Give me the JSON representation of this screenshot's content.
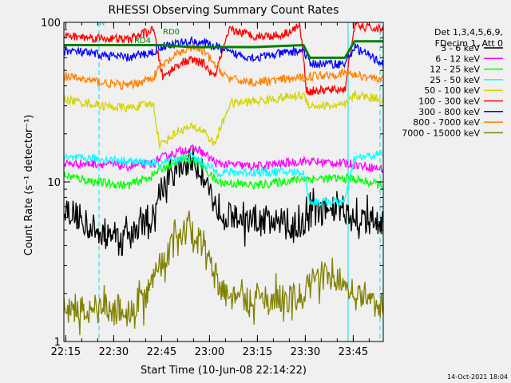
{
  "chart_data": {
    "type": "line",
    "title": "RHESSI Observing Summary Count Rates",
    "xlabel": "Start Time (10-Jun-08 22:14:22)",
    "ylabel": "Count Rate (s⁻¹ detector⁻¹)",
    "yscale": "log",
    "ylim": [
      1,
      100
    ],
    "xlim_minutes": [
      0,
      100
    ],
    "x_ticks": [
      {
        "label": "22:15",
        "t": 0.6
      },
      {
        "label": "22:30",
        "t": 15.6
      },
      {
        "label": "22:45",
        "t": 30.6
      },
      {
        "label": "23:00",
        "t": 45.6
      },
      {
        "label": "23:15",
        "t": 60.6
      },
      {
        "label": "23:30",
        "t": 75.6
      },
      {
        "label": "23:45",
        "t": 90.6
      }
    ],
    "y_ticks": [
      {
        "label": "1",
        "v": 1
      },
      {
        "label": "10",
        "v": 10
      },
      {
        "label": "100",
        "v": 100
      }
    ],
    "legend_header": [
      "Det 1,3,4,5,6,9,",
      "FDecim 1, Att 0"
    ],
    "legend_position": "right",
    "series": [
      {
        "name": "3 - 6 keV",
        "color": "#000000",
        "t": [
          0,
          10,
          20,
          28,
          30,
          36,
          40,
          44,
          47,
          52,
          60,
          70,
          74,
          77,
          88,
          91,
          100
        ],
        "v": [
          7,
          5,
          4.5,
          6,
          9,
          12,
          14,
          11,
          7.5,
          6,
          5.6,
          5.5,
          5.2,
          6.5,
          6.7,
          5.8,
          5.7
        ]
      },
      {
        "name": "6 - 12 keV",
        "color": "#ff00ff",
        "t": [
          0,
          12,
          20,
          28,
          30,
          38,
          42,
          48,
          60,
          75,
          90,
          100
        ],
        "v": [
          13,
          13,
          12.5,
          13,
          14,
          16,
          16,
          13,
          12.5,
          13.5,
          13,
          12
        ]
      },
      {
        "name": "12 - 25 keV",
        "color": "#00ff00",
        "t": [
          0,
          10,
          20,
          28,
          30,
          38,
          42,
          46,
          48,
          60,
          75,
          90,
          100
        ],
        "v": [
          11,
          10,
          9.5,
          11,
          12,
          14,
          13.5,
          11,
          10,
          9.5,
          10.5,
          10.5,
          9.5
        ]
      },
      {
        "name": "25 - 50 keV",
        "color": "#00ffff",
        "t": [
          0,
          10,
          20,
          30,
          36,
          40,
          44,
          48,
          60,
          75,
          77,
          88,
          91,
          100
        ],
        "v": [
          14,
          14,
          13.5,
          13,
          14,
          14.5,
          13,
          11.5,
          11.5,
          11.5,
          7.5,
          7.5,
          14,
          15
        ]
      },
      {
        "name": "50 - 100 keV",
        "color": "#d4d400",
        "t": [
          0,
          12,
          20,
          28,
          30,
          36,
          40,
          44,
          47,
          52,
          60,
          75,
          77,
          88,
          91,
          100
        ],
        "v": [
          33,
          30,
          29,
          31,
          17,
          21,
          22,
          21,
          17,
          31,
          32,
          35,
          30,
          30,
          35,
          33
        ]
      },
      {
        "name": "100 - 300 keV",
        "color": "#ff0000",
        "t": [
          0,
          20,
          28,
          31,
          36,
          40,
          44,
          47,
          52,
          60,
          68,
          74,
          76,
          88,
          91,
          100
        ],
        "v": [
          82,
          78,
          90,
          45,
          55,
          58,
          55,
          45,
          90,
          82,
          83,
          95,
          37,
          38,
          95,
          90
        ]
      },
      {
        "name": "300 - 800 keV",
        "color": "#0000ff",
        "t": [
          0,
          10,
          20,
          28,
          30,
          36,
          40,
          44,
          48,
          52,
          60,
          75,
          77,
          88,
          91,
          100
        ],
        "v": [
          67,
          63,
          60,
          65,
          70,
          74,
          76,
          74,
          70,
          64,
          60,
          67,
          55,
          55,
          70,
          55
        ]
      },
      {
        "name": "800 - 7000 keV",
        "color": "#ff8000",
        "t": [
          0,
          12,
          20,
          28,
          30,
          36,
          40,
          44,
          48,
          52,
          60,
          75,
          77,
          88,
          91,
          100
        ],
        "v": [
          46,
          42,
          40,
          45,
          52,
          64,
          70,
          65,
          52,
          44,
          42,
          45,
          46,
          48,
          47,
          44
        ]
      },
      {
        "name": "7000 - 15000 keV",
        "color": "#808000",
        "t": [
          0,
          10,
          20,
          26,
          30,
          34,
          38,
          42,
          44,
          46,
          48,
          52,
          60,
          75,
          77,
          88,
          91,
          100
        ],
        "v": [
          1.6,
          1.6,
          1.5,
          2,
          3,
          4,
          5,
          4.5,
          4,
          3,
          2.3,
          1.8,
          1.8,
          1.9,
          2.5,
          2.5,
          1.9,
          1.7
        ]
      }
    ],
    "annotations": [
      {
        "label": "N",
        "t": 11,
        "v": 96,
        "color": "#00c0c0"
      },
      {
        "label": "RD0",
        "t": 31,
        "v": 84,
        "color": "#008000"
      },
      {
        "label": "RD4",
        "t": 22,
        "v": 74,
        "color": "#008000"
      }
    ],
    "night_markers": [
      {
        "t": 11,
        "style": "dashed"
      },
      {
        "t": 89,
        "style": "solid"
      },
      {
        "t": 99,
        "style": "dashed"
      }
    ],
    "flag_line": {
      "color": "#008000",
      "t": [
        0,
        30,
        40,
        60,
        75,
        77,
        88,
        91,
        100
      ],
      "v": [
        72,
        72,
        70,
        70,
        72,
        60,
        60,
        76,
        76
      ]
    },
    "footer_date": "14-Oct-2021 18:04"
  }
}
